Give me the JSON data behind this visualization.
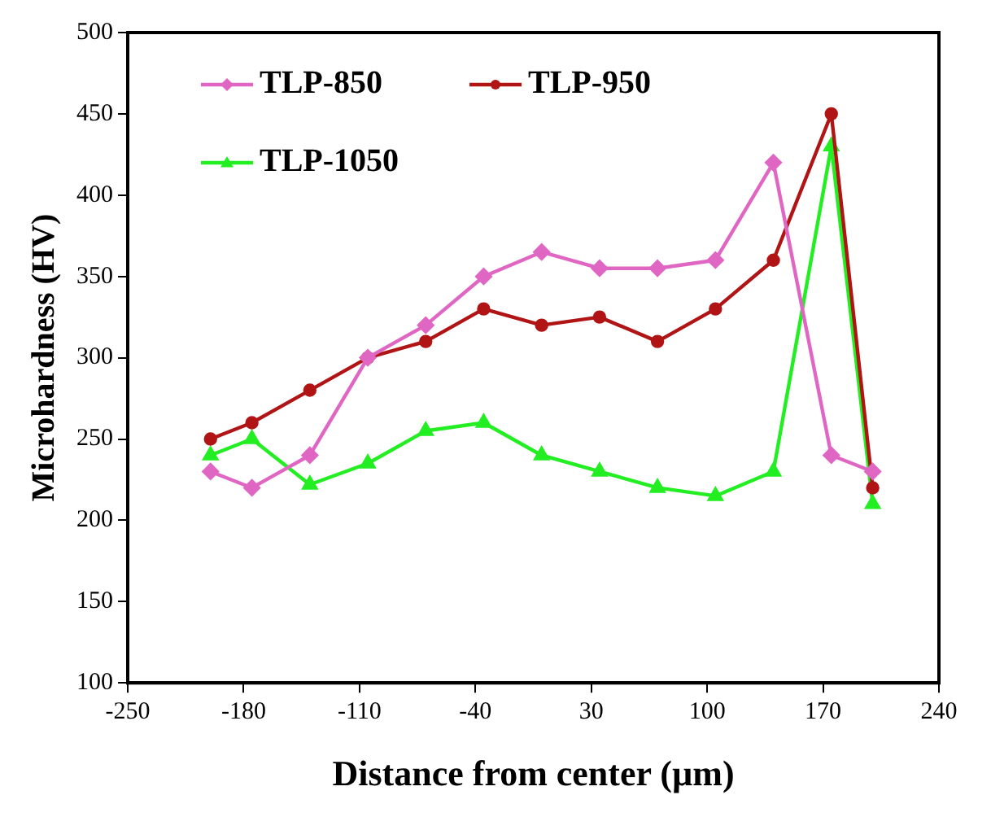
{
  "chart_data": {
    "type": "line",
    "xlabel": "Distance from center (µm)",
    "ylabel": "Microhardness (HV)",
    "xlim": [
      -250,
      240
    ],
    "xticks": [
      -250,
      -180,
      -110,
      -40,
      30,
      100,
      170,
      240
    ],
    "ylim": [
      100,
      500
    ],
    "yticks": [
      100,
      150,
      200,
      250,
      300,
      350,
      400,
      450,
      500
    ],
    "x": [
      -200,
      -175,
      -140,
      -105,
      -70,
      -35,
      0,
      35,
      70,
      105,
      140,
      175,
      200
    ],
    "grid": false,
    "legend": "top left",
    "line_style": "solid",
    "series": [
      {
        "name": "TLP-850",
        "color": "#e066c4",
        "marker": "diamond",
        "values": [
          230,
          220,
          240,
          300,
          320,
          350,
          365,
          355,
          355,
          360,
          420,
          240,
          230
        ]
      },
      {
        "name": "TLP-950",
        "color": "#b01414",
        "marker": "circle",
        "values": [
          250,
          260,
          280,
          300,
          310,
          330,
          320,
          325,
          310,
          330,
          360,
          450,
          220
        ]
      },
      {
        "name": "TLP-1050",
        "color": "#22ee22",
        "marker": "triangle",
        "values": [
          240,
          250,
          222,
          235,
          255,
          260,
          240,
          230,
          220,
          215,
          230,
          430,
          210
        ]
      }
    ]
  }
}
